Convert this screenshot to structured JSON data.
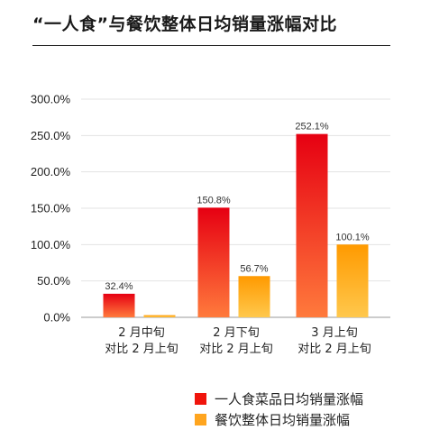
{
  "title": "“一人食”与餐饮整体日均销量涨幅对比",
  "chart_data": {
    "type": "bar",
    "categories": [
      [
        "2 月中旬",
        "对比 2 月上旬"
      ],
      [
        "2 月下旬",
        "对比 2 月上旬"
      ],
      [
        "3 月上旬",
        "对比 2 月上旬"
      ]
    ],
    "series": [
      {
        "name": "一人食菜品日均销量涨幅",
        "values": [
          32.4,
          150.8,
          252.1
        ],
        "labels": [
          "32.4%",
          "150.8%",
          "252.1%"
        ],
        "colors": [
          "#e60012",
          "#ff7a3c"
        ]
      },
      {
        "name": "餐饮整体日均销量涨幅",
        "values": [
          3.0,
          56.7,
          100.1
        ],
        "labels": [
          "",
          "56.7%",
          "100.1%"
        ],
        "colors": [
          "#ff9a00",
          "#ffc84d"
        ]
      }
    ],
    "yticks": [
      "0.0%",
      "50.0%",
      "100.0%",
      "150.0%",
      "200.0%",
      "250.0%",
      "300.0%"
    ],
    "ylim": [
      0,
      300
    ],
    "grid": true,
    "legend": "bottom-right"
  }
}
